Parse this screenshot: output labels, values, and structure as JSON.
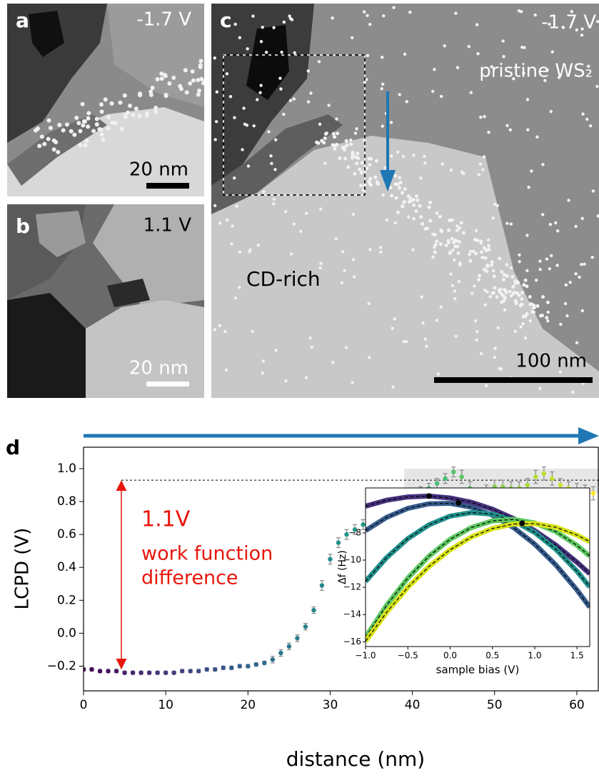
{
  "panels": [
    {
      "label": "a",
      "bias": "-1.7 V",
      "scale": "20 nm"
    },
    {
      "label": "b",
      "bias": "1.1 V",
      "scale": "20 nm"
    },
    {
      "label": "c",
      "bias": "-1.7 V",
      "scale": "100 nm",
      "region_top": "pristine WS₂",
      "region_bottom": "CD-rich"
    }
  ],
  "chart_data": {
    "type": "scatter",
    "panel_label": "d",
    "xlabel": "distance (nm)",
    "ylabel": "LCPD (V)",
    "xlim": [
      0,
      62.7
    ],
    "ylim": [
      -0.35,
      1.13
    ],
    "xticks": [
      0,
      10,
      20,
      30,
      40,
      50,
      60
    ],
    "yticks": [
      {
        "value": -0.2,
        "label": "−0.2"
      },
      {
        "value": 0.0,
        "label": "0.0"
      },
      {
        "value": 0.2,
        "label": "0.2"
      },
      {
        "value": 0.4,
        "label": "0.4"
      },
      {
        "value": 0.6,
        "label": "0.6"
      },
      {
        "value": 0.8,
        "label": "0.8"
      },
      {
        "value": 1.0,
        "label": "1.0"
      }
    ],
    "colormap": "viridis",
    "series": [
      {
        "name": "LCPD",
        "x": [
          0,
          1,
          2,
          3,
          4,
          5,
          6,
          7,
          8,
          9,
          10,
          11,
          12,
          13,
          14,
          15,
          16,
          17,
          18,
          19,
          20,
          21,
          22,
          23,
          24,
          25,
          26,
          27,
          28,
          29,
          30,
          31,
          32,
          33,
          34,
          35,
          36,
          37,
          38,
          39,
          40,
          41,
          42,
          43,
          44,
          45,
          46,
          47,
          48,
          49,
          50,
          51,
          52,
          53,
          54,
          55,
          56,
          57,
          58,
          59,
          60,
          61,
          62
        ],
        "values": [
          -0.22,
          -0.22,
          -0.23,
          -0.23,
          -0.23,
          -0.24,
          -0.24,
          -0.24,
          -0.24,
          -0.24,
          -0.24,
          -0.24,
          -0.23,
          -0.23,
          -0.23,
          -0.22,
          -0.22,
          -0.21,
          -0.21,
          -0.2,
          -0.2,
          -0.19,
          -0.18,
          -0.16,
          -0.12,
          -0.08,
          -0.03,
          0.04,
          0.14,
          0.29,
          0.45,
          0.55,
          0.6,
          0.63,
          0.66,
          0.68,
          0.71,
          0.74,
          0.77,
          0.8,
          0.83,
          0.86,
          0.88,
          0.91,
          0.94,
          0.98,
          0.95,
          0.88,
          0.84,
          0.86,
          0.89,
          0.89,
          0.88,
          0.88,
          0.9,
          0.95,
          0.97,
          0.94,
          0.9,
          0.88,
          0.87,
          0.86,
          0.85
        ],
        "errors": [
          0.01,
          0.01,
          0.01,
          0.01,
          0.01,
          0.01,
          0.01,
          0.01,
          0.01,
          0.01,
          0.01,
          0.01,
          0.01,
          0.01,
          0.01,
          0.01,
          0.01,
          0.01,
          0.01,
          0.01,
          0.01,
          0.01,
          0.01,
          0.02,
          0.02,
          0.02,
          0.02,
          0.02,
          0.02,
          0.03,
          0.03,
          0.03,
          0.03,
          0.03,
          0.03,
          0.03,
          0.03,
          0.03,
          0.03,
          0.03,
          0.03,
          0.03,
          0.03,
          0.03,
          0.03,
          0.03,
          0.04,
          0.04,
          0.04,
          0.04,
          0.04,
          0.04,
          0.04,
          0.04,
          0.04,
          0.04,
          0.04,
          0.04,
          0.04,
          0.04,
          0.04,
          0.04,
          0.04
        ]
      }
    ],
    "reference_line": {
      "y": 0.93,
      "x_start": 4.6
    },
    "shaded_region": {
      "x": [
        39,
        62.7
      ],
      "y": [
        0.85,
        1.0
      ]
    },
    "arrow": {
      "x": 4.6,
      "y": [
        -0.22,
        0.93
      ],
      "color": "#e8160c"
    },
    "annotation_value": "1.1V",
    "annotation_text": [
      "work function",
      "difference"
    ],
    "inset": {
      "type": "line",
      "xlabel": "sample bias (V)",
      "ylabel": "Δf (Hz)",
      "xlim": [
        -1.0,
        1.65
      ],
      "ylim": [
        -16.35,
        -4.7
      ],
      "xticks": [
        {
          "value": -1.0,
          "label": "−1.0"
        },
        {
          "value": -0.5,
          "label": "−0.5"
        },
        {
          "value": 0.0,
          "label": "0.0"
        },
        {
          "value": 0.5,
          "label": "0.5"
        },
        {
          "value": 1.0,
          "label": "1.0"
        },
        {
          "value": 1.5,
          "label": "1.5"
        }
      ],
      "yticks": [
        {
          "value": -16,
          "label": "−16"
        },
        {
          "value": -14,
          "label": "−14"
        },
        {
          "value": -12,
          "label": "−12"
        },
        {
          "value": -10,
          "label": "−10"
        },
        {
          "value": -8,
          "label": "−8"
        }
      ],
      "x": [
        -1.0,
        -0.75,
        -0.5,
        -0.25,
        0.0,
        0.25,
        0.5,
        0.75,
        1.0,
        1.25,
        1.5,
        1.65
      ],
      "series": [
        {
          "color": "#46327e",
          "values": [
            -6.04,
            -5.6,
            -5.36,
            -5.3,
            -5.44,
            -5.75,
            -6.26,
            -6.95,
            -7.84,
            -8.9,
            -10.16,
            -11.0
          ]
        },
        {
          "color": "#365c8d",
          "values": [
            -7.83,
            -6.86,
            -6.2,
            -5.86,
            -5.83,
            -6.11,
            -6.7,
            -7.61,
            -8.83,
            -10.36,
            -12.2,
            -13.46
          ]
        },
        {
          "color": "#21918c",
          "values": [
            -11.57,
            -9.81,
            -8.42,
            -7.41,
            -6.77,
            -6.51,
            -6.62,
            -7.11,
            -7.97,
            -9.21,
            -10.82,
            -11.97
          ]
        },
        {
          "color": "#5ec962",
          "values": [
            -15.67,
            -13.31,
            -11.32,
            -9.71,
            -8.47,
            -7.61,
            -7.12,
            -7.01,
            -7.27,
            -7.91,
            -8.92,
            -9.71
          ]
        },
        {
          "color": "#d8e219",
          "values": [
            -15.96,
            -13.83,
            -12.0,
            -10.47,
            -9.24,
            -8.31,
            -7.68,
            -7.35,
            -7.32,
            -7.59,
            -8.16,
            -8.65
          ]
        }
      ],
      "peaks": {
        "x": [
          -0.25,
          0.1,
          0.85
        ],
        "values": [
          -5.3,
          -5.8,
          -7.3
        ]
      }
    }
  }
}
